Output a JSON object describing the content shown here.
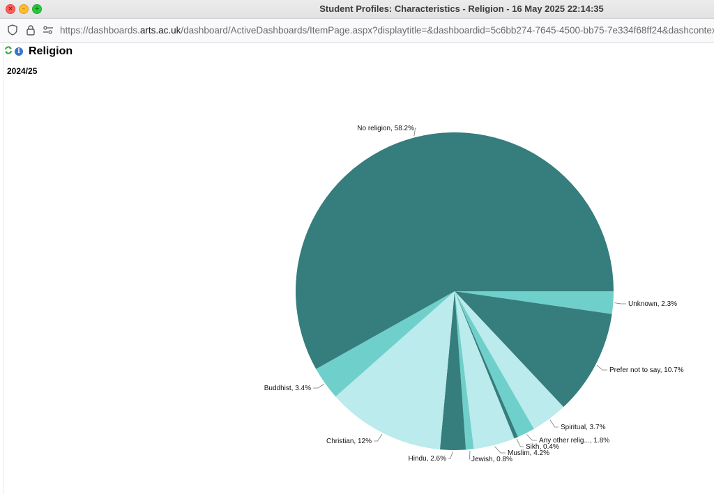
{
  "window": {
    "title": "Student Profiles: Characteristics - Religion - 16 May 2025 22:14:35"
  },
  "address_bar": {
    "url_prefix": "https://dashboards.",
    "url_host": "arts.ac.uk",
    "url_rest": "/dashboard/ActiveDashboards/ItemPage.aspx?displaytitle=&dashboardid=5c6bb274-7645-4500-bb75-7e334f68ff24&dashcontextid"
  },
  "page": {
    "title": "Religion",
    "period": "2024/25"
  },
  "colors": {
    "dark_teal": "#367d7d",
    "mid_teal": "#6fcfcb",
    "light_teal": "#bbebec"
  },
  "chart_data": {
    "type": "pie",
    "start_angle_deg": 90,
    "direction": "clockwise",
    "slices": [
      {
        "label": "Unknown, 2.3%",
        "category": "Unknown",
        "value": 2.3,
        "color": "#6fcfcb"
      },
      {
        "label": "Prefer not to say, 10.7%",
        "category": "Prefer not to say",
        "value": 10.7,
        "color": "#367d7d"
      },
      {
        "label": "Spiritual, 3.7%",
        "category": "Spiritual",
        "value": 3.7,
        "color": "#bbebec"
      },
      {
        "label": "Any other relig..., 1.8%",
        "category": "Any other relig...",
        "value": 1.8,
        "color": "#6fcfcb"
      },
      {
        "label": "Sikh, 0.4%",
        "category": "Sikh",
        "value": 0.4,
        "color": "#367d7d"
      },
      {
        "label": "Muslim, 4.2%",
        "category": "Muslim",
        "value": 4.2,
        "color": "#bbebec"
      },
      {
        "label": "Jewish, 0.8%",
        "category": "Jewish",
        "value": 0.8,
        "color": "#6fcfcb"
      },
      {
        "label": "Hindu, 2.6%",
        "category": "Hindu",
        "value": 2.6,
        "color": "#367d7d"
      },
      {
        "label": "Christian, 12%",
        "category": "Christian",
        "value": 12,
        "color": "#bbebec"
      },
      {
        "label": "Buddhist, 3.4%",
        "category": "Buddhist",
        "value": 3.4,
        "color": "#6fcfcb"
      },
      {
        "label": "No religion, 58.2%",
        "category": "No religion",
        "value": 58.2,
        "color": "#367d7d"
      }
    ]
  }
}
